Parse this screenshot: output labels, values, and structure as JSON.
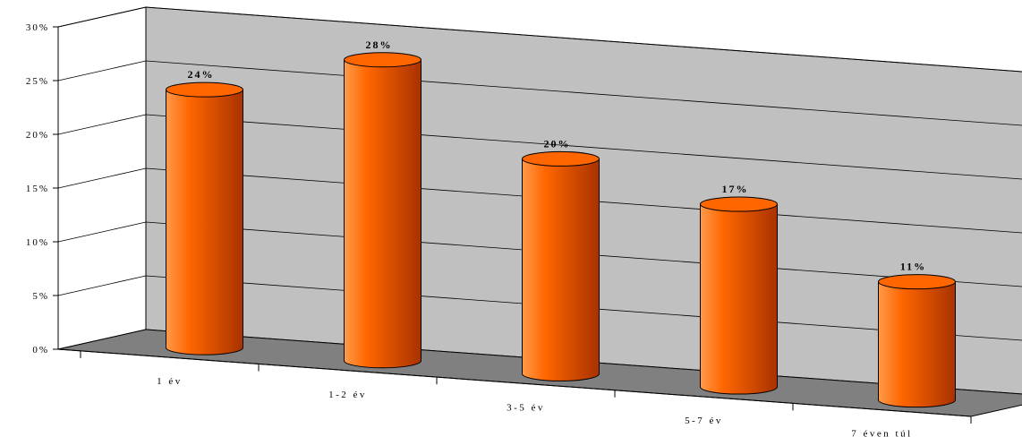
{
  "chart_data": {
    "type": "bar",
    "shape": "cylinder",
    "three_d": true,
    "categories": [
      "1 év",
      "1-2 év",
      "3-5 év",
      "5-7 év",
      "7 éven túl"
    ],
    "values": [
      24,
      28,
      20,
      17,
      11
    ],
    "data_labels": [
      "24%",
      "28%",
      "20%",
      "17%",
      "11%"
    ],
    "y_ticks": [
      "0%",
      "5%",
      "10%",
      "15%",
      "20%",
      "25%",
      "30%"
    ],
    "ylim": [
      0,
      30
    ],
    "grid": true,
    "legend": "none",
    "colors": {
      "bar": "#ff6600",
      "bar_dark": "#a83200",
      "bar_light": "#ff9a4a",
      "wall": "#c0c0c0",
      "floor": "#808080",
      "grid": "#000000"
    }
  }
}
